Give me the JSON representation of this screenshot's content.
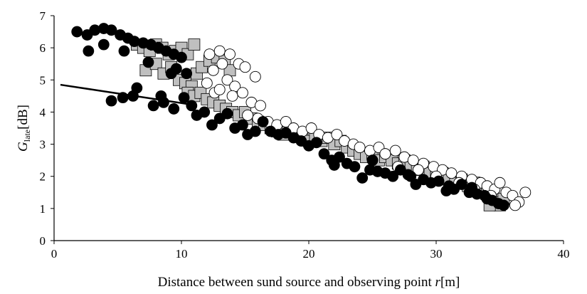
{
  "chart_data": {
    "type": "scatter",
    "title": "",
    "xlabel": {
      "text": "Distance between sund source and observing point ",
      "var": "r",
      "unit": "[m]"
    },
    "ylabel": {
      "var": "G",
      "sub": "late",
      "unit": "[dB]"
    },
    "xlim": [
      0,
      40
    ],
    "ylim": [
      0,
      7
    ],
    "x_ticks": [
      "0",
      "10",
      "20",
      "30",
      "40"
    ],
    "y_ticks": [
      "0",
      "1",
      "2",
      "3",
      "4",
      "5",
      "6",
      "7"
    ],
    "grid": false,
    "legend": "none",
    "colors": {
      "black": "#000000",
      "gray": "#bfbfbf",
      "white": "#ffffff"
    },
    "fit_line": {
      "x": [
        0.5,
        10.5
      ],
      "y": [
        4.85,
        4.25
      ]
    },
    "series": [
      {
        "marker": "square-gray",
        "points": [
          [
            6.5,
            6.1
          ],
          [
            7.0,
            6.0
          ],
          [
            7.5,
            5.9
          ],
          [
            8.0,
            6.1
          ],
          [
            8.5,
            6.0
          ],
          [
            9.0,
            5.8
          ],
          [
            9.5,
            5.9
          ],
          [
            10.0,
            6.0
          ],
          [
            10.5,
            5.8
          ],
          [
            11.0,
            6.1
          ],
          [
            7.2,
            5.3
          ],
          [
            8.0,
            5.5
          ],
          [
            8.6,
            5.2
          ],
          [
            9.2,
            5.4
          ],
          [
            9.8,
            5.0
          ],
          [
            10.3,
            4.9
          ],
          [
            10.8,
            4.8
          ],
          [
            11.2,
            5.2
          ],
          [
            11.6,
            5.4
          ],
          [
            12.2,
            5.6
          ],
          [
            12.8,
            5.7
          ],
          [
            13.4,
            5.6
          ],
          [
            13.8,
            5.3
          ],
          [
            10.5,
            4.6
          ],
          [
            11.0,
            4.5
          ],
          [
            11.5,
            4.6
          ],
          [
            12.0,
            4.4
          ],
          [
            12.5,
            4.3
          ],
          [
            13.0,
            4.2
          ],
          [
            13.5,
            4.1
          ],
          [
            14.0,
            4.0
          ],
          [
            14.5,
            3.9
          ],
          [
            15.0,
            4.0
          ],
          [
            15.5,
            3.8
          ],
          [
            16.0,
            3.7
          ],
          [
            16.5,
            3.6
          ],
          [
            17.0,
            3.5
          ],
          [
            17.5,
            3.4
          ],
          [
            18.0,
            3.3
          ],
          [
            18.5,
            3.4
          ],
          [
            19.0,
            3.3
          ],
          [
            19.5,
            3.2
          ],
          [
            20.0,
            3.1
          ],
          [
            20.5,
            3.2
          ],
          [
            21.0,
            3.1
          ],
          [
            21.5,
            3.2
          ],
          [
            22.0,
            3.0
          ],
          [
            22.5,
            3.1
          ],
          [
            23.0,
            2.9
          ],
          [
            23.5,
            2.8
          ],
          [
            24.0,
            2.7
          ],
          [
            24.5,
            2.6
          ],
          [
            25.0,
            2.7
          ],
          [
            25.5,
            2.5
          ],
          [
            26.0,
            2.6
          ],
          [
            26.5,
            2.5
          ],
          [
            27.0,
            2.4
          ],
          [
            27.5,
            2.5
          ],
          [
            28.0,
            2.3
          ],
          [
            28.5,
            2.2
          ],
          [
            29.0,
            2.3
          ],
          [
            29.5,
            2.1
          ],
          [
            30.0,
            2.0
          ],
          [
            30.5,
            2.1
          ],
          [
            31.0,
            1.9
          ],
          [
            31.5,
            1.8
          ],
          [
            32.0,
            1.9
          ],
          [
            32.5,
            1.7
          ],
          [
            33.0,
            1.8
          ],
          [
            33.5,
            1.6
          ],
          [
            34.0,
            1.5
          ],
          [
            34.5,
            1.4
          ],
          [
            34.8,
            1.2
          ],
          [
            35.0,
            1.1
          ],
          [
            35.3,
            1.3
          ],
          [
            34.2,
            1.1
          ]
        ]
      },
      {
        "marker": "circle-white",
        "points": [
          [
            12.2,
            5.8
          ],
          [
            13.0,
            5.9
          ],
          [
            13.8,
            5.8
          ],
          [
            14.5,
            5.5
          ],
          [
            15.0,
            5.4
          ],
          [
            15.8,
            5.1
          ],
          [
            12.5,
            5.3
          ],
          [
            13.2,
            5.5
          ],
          [
            13.6,
            5.0
          ],
          [
            14.2,
            4.8
          ],
          [
            12.0,
            4.9
          ],
          [
            12.6,
            4.6
          ],
          [
            13.0,
            4.7
          ],
          [
            14.0,
            4.5
          ],
          [
            14.8,
            4.6
          ],
          [
            15.5,
            4.3
          ],
          [
            16.2,
            4.2
          ],
          [
            15.2,
            3.9
          ],
          [
            16.0,
            3.8
          ],
          [
            16.8,
            3.7
          ],
          [
            17.5,
            3.6
          ],
          [
            18.2,
            3.7
          ],
          [
            18.8,
            3.5
          ],
          [
            19.5,
            3.4
          ],
          [
            20.2,
            3.5
          ],
          [
            20.8,
            3.3
          ],
          [
            21.5,
            3.2
          ],
          [
            22.2,
            3.3
          ],
          [
            22.8,
            3.1
          ],
          [
            23.5,
            3.0
          ],
          [
            24.0,
            2.9
          ],
          [
            24.8,
            2.8
          ],
          [
            25.5,
            2.9
          ],
          [
            26.0,
            2.7
          ],
          [
            26.8,
            2.8
          ],
          [
            27.5,
            2.6
          ],
          [
            28.2,
            2.5
          ],
          [
            29.0,
            2.4
          ],
          [
            29.8,
            2.3
          ],
          [
            30.5,
            2.2
          ],
          [
            31.2,
            2.1
          ],
          [
            32.0,
            2.0
          ],
          [
            32.8,
            1.9
          ],
          [
            33.5,
            1.8
          ],
          [
            34.0,
            1.7
          ],
          [
            34.6,
            1.6
          ],
          [
            35.0,
            1.8
          ],
          [
            35.5,
            1.5
          ],
          [
            36.0,
            1.4
          ],
          [
            36.5,
            1.2
          ],
          [
            37.0,
            1.5
          ],
          [
            36.2,
            1.1
          ],
          [
            25.0,
            2.5
          ],
          [
            27.0,
            2.3
          ],
          [
            28.6,
            2.2
          ],
          [
            30.0,
            2.0
          ],
          [
            31.8,
            1.8
          ],
          [
            33.0,
            1.6
          ],
          [
            34.3,
            1.4
          ]
        ]
      },
      {
        "marker": "circle-black",
        "points": [
          [
            1.8,
            6.5
          ],
          [
            2.6,
            6.4
          ],
          [
            3.2,
            6.55
          ],
          [
            3.9,
            6.6
          ],
          [
            4.5,
            6.55
          ],
          [
            5.2,
            6.4
          ],
          [
            5.8,
            6.3
          ],
          [
            6.3,
            6.2
          ],
          [
            7.0,
            6.15
          ],
          [
            7.6,
            6.1
          ],
          [
            8.2,
            6.0
          ],
          [
            8.8,
            5.9
          ],
          [
            9.4,
            5.8
          ],
          [
            10.0,
            5.7
          ],
          [
            2.7,
            5.9
          ],
          [
            3.9,
            6.1
          ],
          [
            5.5,
            5.9
          ],
          [
            7.4,
            5.55
          ],
          [
            9.6,
            5.35
          ],
          [
            10.4,
            5.2
          ],
          [
            9.2,
            5.2
          ],
          [
            6.5,
            4.75
          ],
          [
            8.4,
            4.5
          ],
          [
            4.5,
            4.35
          ],
          [
            5.4,
            4.45
          ],
          [
            6.2,
            4.5
          ],
          [
            7.8,
            4.2
          ],
          [
            8.6,
            4.3
          ],
          [
            9.4,
            4.1
          ],
          [
            10.2,
            4.45
          ],
          [
            10.8,
            4.2
          ],
          [
            11.2,
            3.9
          ],
          [
            11.8,
            4.0
          ],
          [
            12.4,
            3.6
          ],
          [
            13.0,
            3.8
          ],
          [
            13.6,
            3.95
          ],
          [
            14.2,
            3.5
          ],
          [
            14.8,
            3.6
          ],
          [
            15.2,
            3.3
          ],
          [
            15.8,
            3.4
          ],
          [
            16.4,
            3.7
          ],
          [
            17.0,
            3.4
          ],
          [
            17.6,
            3.3
          ],
          [
            18.2,
            3.35
          ],
          [
            18.8,
            3.2
          ],
          [
            19.4,
            3.1
          ],
          [
            20.0,
            2.95
          ],
          [
            20.6,
            3.05
          ],
          [
            21.2,
            2.7
          ],
          [
            21.8,
            2.5
          ],
          [
            22.4,
            2.6
          ],
          [
            23.0,
            2.4
          ],
          [
            23.6,
            2.3
          ],
          [
            24.2,
            1.95
          ],
          [
            24.8,
            2.2
          ],
          [
            25.4,
            2.15
          ],
          [
            26.0,
            2.1
          ],
          [
            26.6,
            2.0
          ],
          [
            27.2,
            2.2
          ],
          [
            27.8,
            2.05
          ],
          [
            28.4,
            1.75
          ],
          [
            29.0,
            1.9
          ],
          [
            29.6,
            1.8
          ],
          [
            30.2,
            1.85
          ],
          [
            30.8,
            1.55
          ],
          [
            31.4,
            1.6
          ],
          [
            32.0,
            1.75
          ],
          [
            32.6,
            1.5
          ],
          [
            33.2,
            1.45
          ],
          [
            33.8,
            1.4
          ],
          [
            34.4,
            1.25
          ],
          [
            34.9,
            1.15
          ],
          [
            35.3,
            1.1
          ],
          [
            34.0,
            1.3
          ],
          [
            22.0,
            2.35
          ],
          [
            25.0,
            2.5
          ],
          [
            28.0,
            2.0
          ],
          [
            31.0,
            1.7
          ],
          [
            32.8,
            1.65
          ]
        ]
      }
    ]
  }
}
